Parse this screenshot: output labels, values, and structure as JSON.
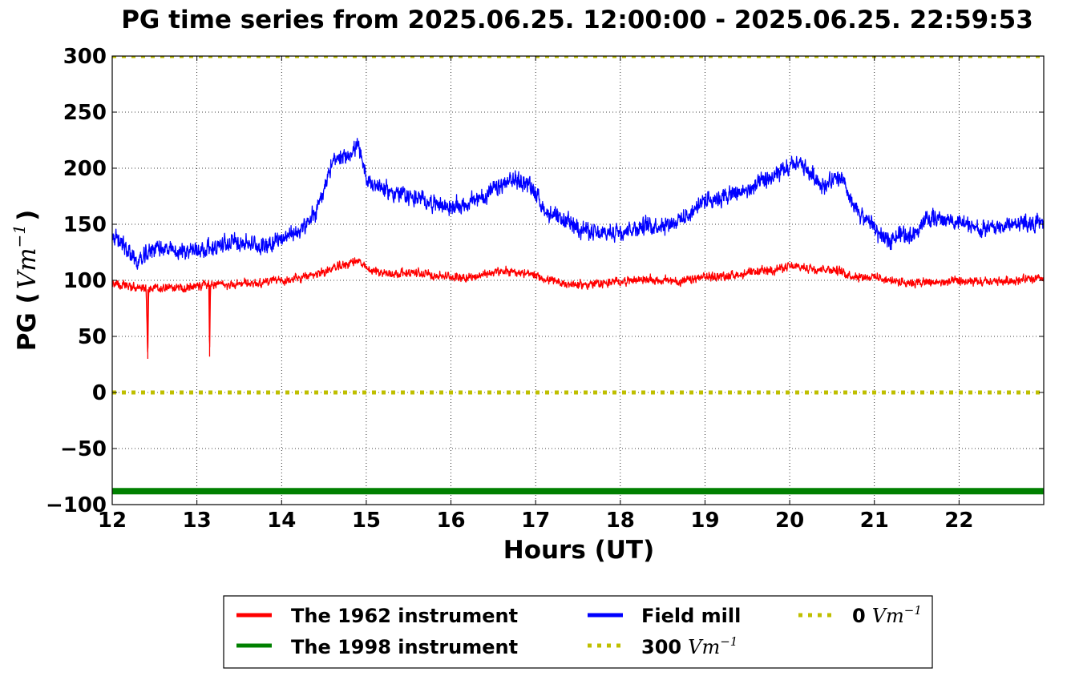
{
  "chart_data": {
    "type": "line",
    "title": "PG time series from 2025.06.25. 12:00:00 - 2025.06.25. 22:59:53",
    "xlabel": "Hours (UT)",
    "ylabel": {
      "prefix": "PG (",
      "unit_base": "Vm",
      "unit_exp": "−1",
      "suffix": ")"
    },
    "xlim": [
      12,
      23
    ],
    "ylim": [
      -100,
      300
    ],
    "x_ticks": [
      12,
      13,
      14,
      15,
      16,
      17,
      18,
      19,
      20,
      21,
      22
    ],
    "x_tick_labels": [
      "12",
      "13",
      "14",
      "15",
      "16",
      "17",
      "18",
      "19",
      "20",
      "21",
      "22"
    ],
    "y_ticks": [
      300,
      250,
      200,
      150,
      100,
      50,
      0,
      -50,
      -100
    ],
    "y_tick_labels": [
      "300",
      "250",
      "200",
      "150",
      "100",
      "50",
      "0",
      "−50",
      "−100"
    ],
    "grid": true,
    "legend_placement": "bottom-center, below plot",
    "series": [
      {
        "name": "The 1962 instrument",
        "color": "#ff0000",
        "style": "solid",
        "x": [
          12.0,
          12.25,
          12.4,
          12.42,
          12.43,
          12.5,
          12.75,
          13.0,
          13.14,
          13.15,
          13.16,
          13.25,
          13.5,
          13.75,
          14.0,
          14.25,
          14.5,
          14.75,
          14.9,
          15.0,
          15.25,
          15.5,
          15.75,
          16.0,
          16.25,
          16.5,
          16.75,
          17.0,
          17.25,
          17.5,
          17.75,
          18.0,
          18.25,
          18.5,
          18.75,
          19.0,
          19.25,
          19.5,
          19.75,
          20.0,
          20.25,
          20.5,
          20.75,
          21.0,
          21.25,
          21.5,
          21.75,
          22.0,
          22.25,
          22.5,
          22.75,
          23.0
        ],
        "values": [
          97,
          94,
          92,
          30,
          92,
          94,
          93,
          95,
          96,
          32,
          96,
          96,
          97,
          98,
          100,
          102,
          108,
          114,
          118,
          110,
          106,
          107,
          105,
          103,
          103,
          107,
          108,
          104,
          98,
          96,
          97,
          99,
          101,
          100,
          99,
          103,
          104,
          106,
          109,
          112,
          111,
          110,
          104,
          103,
          99,
          98,
          98,
          99,
          98,
          99,
          101,
          101
        ],
        "noise": 5
      },
      {
        "name": "The 1998 instrument",
        "color": "#008000",
        "style": "solid-thick",
        "x": [
          12,
          23
        ],
        "values": [
          -88,
          -88
        ]
      },
      {
        "name": "Field mill",
        "color": "#0000ff",
        "style": "solid",
        "x": [
          12.0,
          12.15,
          12.3,
          12.5,
          12.75,
          13.0,
          13.25,
          13.5,
          13.75,
          14.0,
          14.25,
          14.4,
          14.6,
          14.75,
          14.9,
          15.0,
          15.25,
          15.5,
          15.75,
          16.0,
          16.25,
          16.5,
          16.75,
          16.95,
          17.1,
          17.25,
          17.5,
          17.75,
          18.0,
          18.25,
          18.5,
          18.75,
          19.0,
          19.25,
          19.5,
          19.75,
          20.0,
          20.1,
          20.25,
          20.4,
          20.6,
          20.75,
          21.0,
          21.1,
          21.25,
          21.5,
          21.6,
          21.75,
          22.0,
          22.25,
          22.5,
          22.75,
          23.0
        ],
        "values": [
          140,
          130,
          115,
          130,
          125,
          128,
          130,
          135,
          130,
          138,
          145,
          160,
          205,
          210,
          220,
          190,
          180,
          175,
          170,
          165,
          170,
          180,
          190,
          185,
          163,
          155,
          148,
          140,
          145,
          148,
          150,
          155,
          172,
          175,
          180,
          190,
          200,
          205,
          195,
          185,
          192,
          165,
          148,
          135,
          140,
          142,
          155,
          155,
          152,
          145,
          148,
          152,
          150
        ],
        "noise": 10
      },
      {
        "name": "300 Vm−1",
        "legend_prefix": "300",
        "color": "#bfbf00",
        "style": "dotted",
        "x": [
          12,
          23
        ],
        "values": [
          300,
          300
        ]
      },
      {
        "name": "0 Vm−1",
        "legend_prefix": "0",
        "color": "#bfbf00",
        "style": "dotted",
        "x": [
          12,
          23
        ],
        "values": [
          0,
          0
        ]
      }
    ]
  }
}
